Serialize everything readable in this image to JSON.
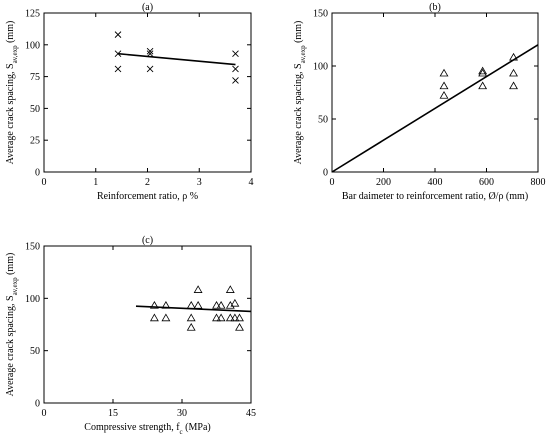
{
  "chart_data": [
    {
      "type": "scatter",
      "title": "(a)",
      "xlabel": "Reinforcement ratio, ρ %",
      "ylabel": "Average crack spacing, S",
      "ylabel_subscript": "av,exp",
      "ylabel_unit": " (mm)",
      "xlim": [
        0,
        4
      ],
      "ylim": [
        0,
        125
      ],
      "xticks": [
        0,
        1,
        2,
        3,
        4
      ],
      "yticks": [
        0,
        25,
        50,
        75,
        100,
        125
      ],
      "marker": "x",
      "grid": false,
      "points": [
        {
          "x": 1.43,
          "y": 108
        },
        {
          "x": 1.43,
          "y": 93
        },
        {
          "x": 1.43,
          "y": 81
        },
        {
          "x": 2.05,
          "y": 95
        },
        {
          "x": 2.05,
          "y": 93
        },
        {
          "x": 2.05,
          "y": 81
        },
        {
          "x": 3.7,
          "y": 93
        },
        {
          "x": 3.7,
          "y": 81
        },
        {
          "x": 3.7,
          "y": 72
        }
      ],
      "fit_line": {
        "x": [
          1.43,
          3.7
        ],
        "y": [
          93,
          84.5
        ]
      }
    },
    {
      "type": "scatter",
      "title": "(b)",
      "xlabel": "Bar daimeter to reinforcement ratio, Ø/ρ  (mm)",
      "ylabel": "Average crack spacing, S",
      "ylabel_subscript": "av,exp",
      "ylabel_unit": " (mm)",
      "xlim": [
        0,
        800
      ],
      "ylim": [
        0,
        150
      ],
      "xticks": [
        0,
        200,
        400,
        600,
        800
      ],
      "yticks": [
        0,
        50,
        100,
        150
      ],
      "marker": "triangle",
      "grid": false,
      "points": [
        {
          "x": 435,
          "y": 93
        },
        {
          "x": 435,
          "y": 81
        },
        {
          "x": 435,
          "y": 72
        },
        {
          "x": 585,
          "y": 95
        },
        {
          "x": 585,
          "y": 93
        },
        {
          "x": 585,
          "y": 81
        },
        {
          "x": 705,
          "y": 108
        },
        {
          "x": 705,
          "y": 93
        },
        {
          "x": 705,
          "y": 81
        }
      ],
      "fit_line": {
        "x": [
          0,
          800
        ],
        "y": [
          0,
          120
        ]
      }
    },
    {
      "type": "scatter",
      "title": "(c)",
      "xlabel": "Compressive strength, f",
      "xlabel_subscript": "c",
      "xlabel_unit": " (MPa)",
      "ylabel": "Average crack spacing, S",
      "ylabel_subscript": "av,exp",
      "ylabel_unit": " (mm)",
      "xlim": [
        0,
        45
      ],
      "ylim": [
        0,
        150
      ],
      "xticks": [
        0,
        15,
        30,
        45
      ],
      "yticks": [
        0,
        50,
        100,
        150
      ],
      "marker": "triangle",
      "grid": false,
      "points": [
        {
          "x": 24,
          "y": 93
        },
        {
          "x": 24,
          "y": 81
        },
        {
          "x": 26.5,
          "y": 93
        },
        {
          "x": 26.5,
          "y": 81
        },
        {
          "x": 32,
          "y": 93
        },
        {
          "x": 32,
          "y": 81
        },
        {
          "x": 32,
          "y": 72
        },
        {
          "x": 33.5,
          "y": 108
        },
        {
          "x": 33.5,
          "y": 93
        },
        {
          "x": 37.5,
          "y": 93
        },
        {
          "x": 37.5,
          "y": 81
        },
        {
          "x": 38.5,
          "y": 93
        },
        {
          "x": 38.5,
          "y": 81
        },
        {
          "x": 40.5,
          "y": 108
        },
        {
          "x": 40.5,
          "y": 93
        },
        {
          "x": 40.5,
          "y": 81
        },
        {
          "x": 41.5,
          "y": 95
        },
        {
          "x": 41.5,
          "y": 81
        },
        {
          "x": 42.5,
          "y": 81
        },
        {
          "x": 42.5,
          "y": 72
        }
      ],
      "fit_line": {
        "x": [
          20,
          45
        ],
        "y": [
          92.5,
          87.5
        ]
      }
    }
  ]
}
